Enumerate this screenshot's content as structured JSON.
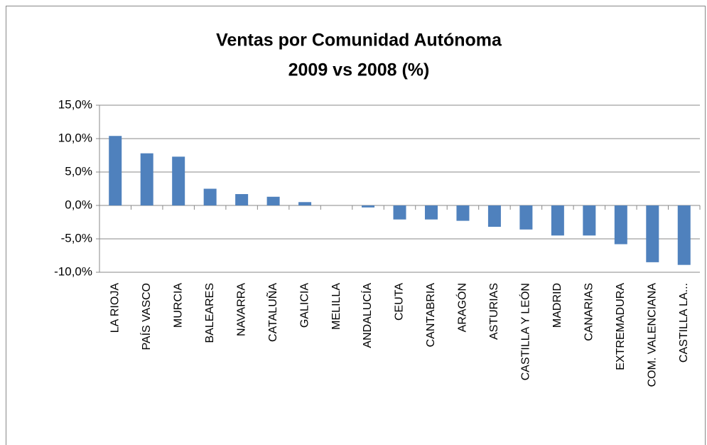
{
  "chart_data": {
    "type": "bar",
    "title": "Ventas por Comunidad Autónoma",
    "subtitle": "2009 vs 2008 (%)",
    "categories": [
      "LA RIOJA",
      "PAÍS VASCO",
      "MURCIA",
      "BALEARES",
      "NAVARRA",
      "CATALUÑA",
      "GALICIA",
      "MELILLA",
      "ANDALUCÍA",
      "CEUTA",
      "CANTABRIA",
      "ARAGÓN",
      "ASTURIAS",
      "CASTILLA Y LEÓN",
      "MADRID",
      "CANARIAS",
      "EXTREMADURA",
      "COM. VALENCIANA",
      "CASTILLA LA..."
    ],
    "values": [
      10.4,
      7.8,
      7.3,
      2.5,
      1.7,
      1.3,
      0.5,
      0,
      -0.3,
      -2.1,
      -2.1,
      -2.3,
      -3.2,
      -3.6,
      -4.5,
      -4.5,
      -5.8,
      -8.5,
      -8.9
    ],
    "color": "#4f81bd",
    "ylim": [
      -10,
      15
    ],
    "yticks": [
      {
        "value": -10,
        "label": "-10,0%"
      },
      {
        "value": -5,
        "label": "-5,0%"
      },
      {
        "value": 0,
        "label": "0,0%"
      },
      {
        "value": 5,
        "label": "5,0%"
      },
      {
        "value": 10,
        "label": "10,0%"
      },
      {
        "value": 15,
        "label": "15,0%"
      }
    ],
    "grid": true
  }
}
